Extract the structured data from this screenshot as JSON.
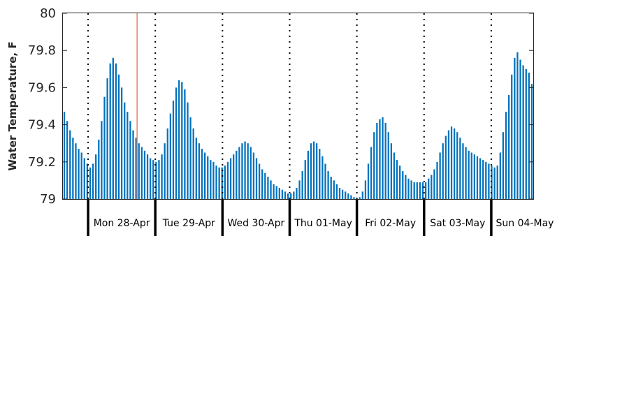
{
  "chart_data": {
    "type": "bar",
    "title": "",
    "xlabel": "",
    "ylabel": "Water Temperature, F",
    "ylim": [
      79,
      80
    ],
    "yticks": [
      79,
      79.2,
      79.4,
      79.6,
      79.8,
      80
    ],
    "ytick_labels": [
      "79",
      "79.2",
      "79.4",
      "79.6",
      "79.8",
      "80"
    ],
    "grid": false,
    "legend": "none",
    "bar_color": "#0072BD",
    "marker_color": "#E8826F",
    "day_labels": [
      "Mon 28-Apr",
      "Tue 29-Apr",
      "Wed 30-Apr",
      "Thu 01-May",
      "Fri 02-May",
      "Sat 03-May",
      "Sun 04-May"
    ],
    "x_start_hour": -9,
    "x_end_hour": 159,
    "day_boundaries_hour": [
      0,
      24,
      48,
      72,
      96,
      120,
      144
    ],
    "current_time_hour": 17.5,
    "series": [
      {
        "values": [
          79.47,
          79.42,
          79.37,
          79.33,
          79.3,
          79.27,
          79.25,
          79.22,
          79.19,
          79.17,
          79.19,
          79.24,
          79.32,
          79.42,
          79.55,
          79.65,
          79.73,
          79.76,
          79.73,
          79.67,
          79.6,
          79.52,
          79.47,
          79.42,
          79.37,
          79.33,
          79.3,
          79.28,
          79.26,
          79.24,
          79.22,
          79.21,
          79.2,
          79.21,
          79.24,
          79.3,
          79.38,
          79.46,
          79.53,
          79.6,
          79.64,
          79.63,
          79.59,
          79.52,
          79.44,
          79.38,
          79.33,
          79.3,
          79.27,
          79.25,
          79.23,
          79.21,
          79.2,
          79.18,
          79.17,
          79.17,
          79.18,
          79.2,
          79.22,
          79.24,
          79.26,
          79.28,
          79.3,
          79.31,
          79.3,
          79.28,
          79.25,
          79.22,
          79.19,
          79.16,
          79.14,
          79.12,
          79.1,
          79.08,
          79.07,
          79.06,
          79.05,
          79.04,
          79.03,
          79.03,
          79.04,
          79.06,
          79.1,
          79.15,
          79.21,
          79.26,
          79.3,
          79.31,
          79.3,
          79.27,
          79.23,
          79.19,
          79.15,
          79.12,
          79.1,
          79.08,
          79.06,
          79.05,
          79.04,
          79.03,
          79.02,
          79.01,
          79.0,
          79.01,
          79.04,
          79.1,
          79.19,
          79.28,
          79.36,
          79.41,
          79.43,
          79.44,
          79.41,
          79.36,
          79.3,
          79.25,
          79.21,
          79.18,
          79.15,
          79.13,
          79.11,
          79.1,
          79.09,
          79.09,
          79.09,
          79.09,
          79.09,
          79.11,
          79.13,
          79.16,
          79.2,
          79.25,
          79.3,
          79.34,
          79.37,
          79.39,
          79.38,
          79.36,
          79.33,
          79.3,
          79.28,
          79.26,
          79.25,
          79.24,
          79.23,
          79.22,
          79.21,
          79.2,
          79.19,
          79.18,
          79.17,
          79.18,
          79.25,
          79.36,
          79.47,
          79.56,
          79.67,
          79.76,
          79.79,
          79.75,
          79.72,
          79.7,
          79.68,
          79.62
        ]
      }
    ]
  }
}
